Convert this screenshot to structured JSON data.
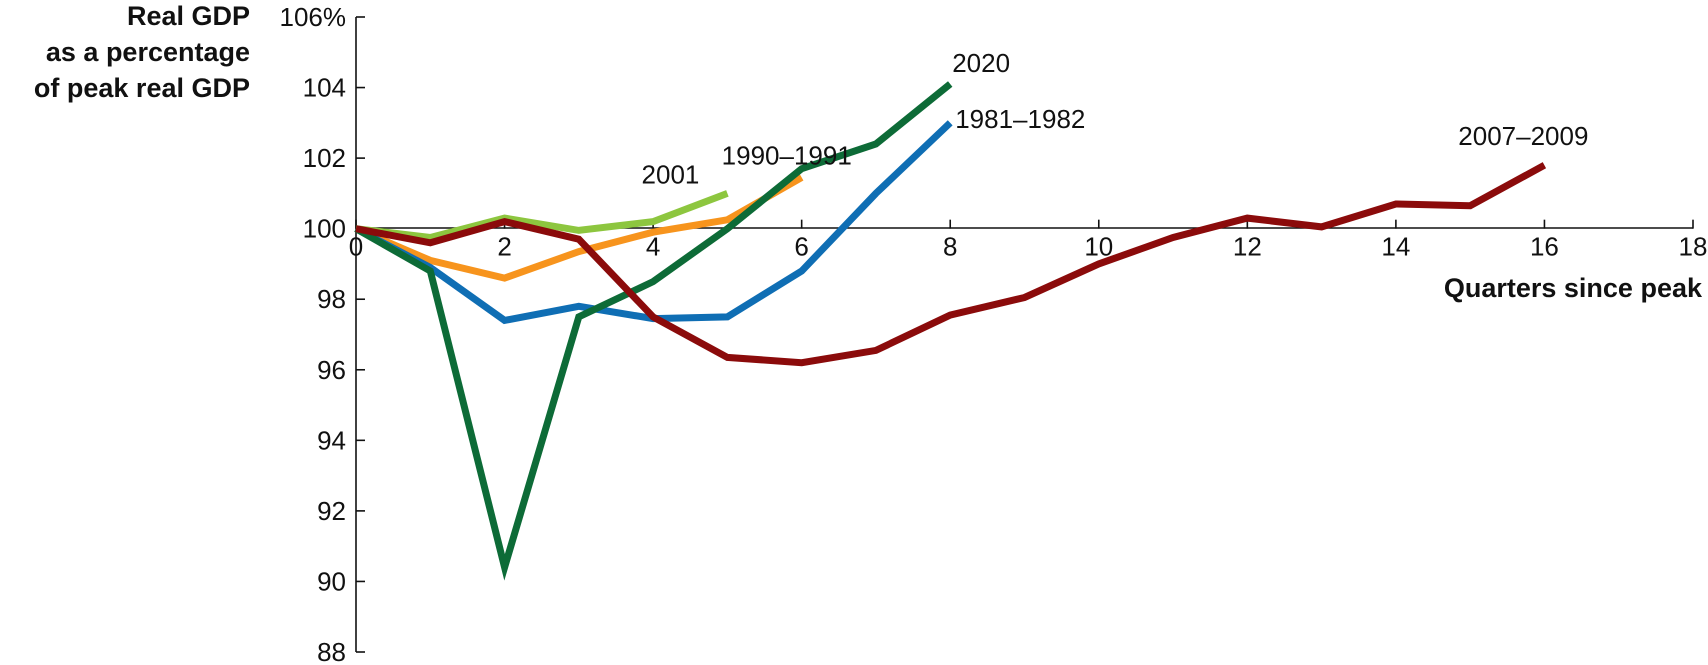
{
  "chart_data": {
    "type": "line",
    "ylabel": [
      "Real GDP",
      "as a percentage",
      "of peak real GDP"
    ],
    "xlabel": "Quarters since peak",
    "xlim": [
      0,
      18
    ],
    "ylim": [
      88,
      106
    ],
    "x_ticks": [
      "0",
      "2",
      "4",
      "6",
      "8",
      "10",
      "12",
      "14",
      "16",
      "18"
    ],
    "x_tick_values": [
      0,
      2,
      4,
      6,
      8,
      10,
      12,
      14,
      16,
      18
    ],
    "y_ticks": [
      "88",
      "90",
      "92",
      "94",
      "96",
      "98",
      "100",
      "102",
      "104",
      "106%"
    ],
    "y_tick_values": [
      88,
      90,
      92,
      94,
      96,
      98,
      100,
      102,
      104,
      106
    ],
    "series": [
      {
        "name": "2001",
        "color": "#8dc63f",
        "x": [
          0,
          1,
          2,
          3,
          4,
          5
        ],
        "values": [
          100,
          99.75,
          100.3,
          99.95,
          100.2,
          101.0
        ]
      },
      {
        "name": "1990–1991",
        "color": "#f7941d",
        "x": [
          0,
          1,
          2,
          3,
          4,
          5,
          6
        ],
        "values": [
          100,
          99.1,
          98.6,
          99.35,
          99.9,
          100.25,
          101.45
        ]
      },
      {
        "name": "1981–1982",
        "color": "#0f6eb4",
        "x": [
          0,
          1,
          2,
          3,
          4,
          5,
          6,
          7,
          8
        ],
        "values": [
          100,
          98.9,
          97.4,
          97.8,
          97.45,
          97.5,
          98.8,
          101.0,
          103.0
        ]
      },
      {
        "name": "2020",
        "color": "#0d6b37",
        "x": [
          0,
          1,
          2,
          3,
          4,
          5,
          6,
          7,
          8
        ],
        "values": [
          100,
          98.8,
          90.4,
          97.5,
          98.5,
          100.0,
          101.7,
          102.4,
          104.1
        ]
      },
      {
        "name": "2007–2009",
        "color": "#8b0b0b",
        "x": [
          0,
          1,
          2,
          3,
          4,
          5,
          6,
          7,
          8,
          9,
          10,
          11,
          12,
          13,
          14,
          15,
          16
        ],
        "values": [
          100,
          99.6,
          100.2,
          99.7,
          97.5,
          96.35,
          96.2,
          96.55,
          97.55,
          98.05,
          99.0,
          99.75,
          100.3,
          100.05,
          100.7,
          100.65,
          101.8
        ]
      }
    ],
    "series_labels": [
      "2001",
      "1990–1991",
      "1981–1982",
      "2020",
      "2007–2009"
    ],
    "grid": false,
    "legend": "none"
  }
}
